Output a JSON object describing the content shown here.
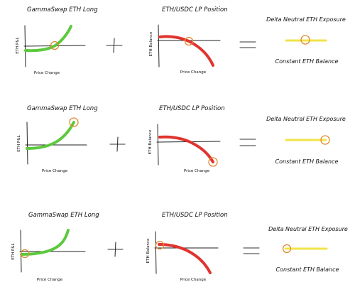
{
  "colors": {
    "green_curve": "#5cc93d",
    "red_curve": "#e0342f",
    "yellow_line": "#f2e34a",
    "circle_marker": "#e0892f"
  },
  "rows": [
    {
      "gs_title": "GammaSwap ETH Long",
      "gs_ylabel": "ETH P&L",
      "gs_xlabel": "Price Change",
      "lp_title": "ETH/USDC LP Position",
      "lp_ylabel": "ETH Balance",
      "lp_xlabel": "Price Change",
      "result_title": "Delta Neutral ETH Exposure",
      "result_caption": "Constant ETH Balance"
    },
    {
      "gs_title": "GammaSwap ETH Long",
      "gs_ylabel": "ETH P&L",
      "gs_xlabel": "Price Change",
      "lp_title": "ETH/USDC LP Position",
      "lp_ylabel": "ETH Balance",
      "lp_xlabel": "Price Change",
      "result_title": "Delta Neutral ETH Exposure",
      "result_caption": "Constant ETH Balance"
    },
    {
      "gs_title": "GammaSwap ETH Long",
      "gs_ylabel": "ETH P&L",
      "gs_xlabel": "Price Change",
      "lp_title": "ETH/USDC LP Position",
      "lp_ylabel": "ETH Balance",
      "lp_xlabel": "Price Change",
      "result_title": "Delta Neutral ETH Exposure",
      "result_caption": "Constant ETH Balance"
    }
  ]
}
